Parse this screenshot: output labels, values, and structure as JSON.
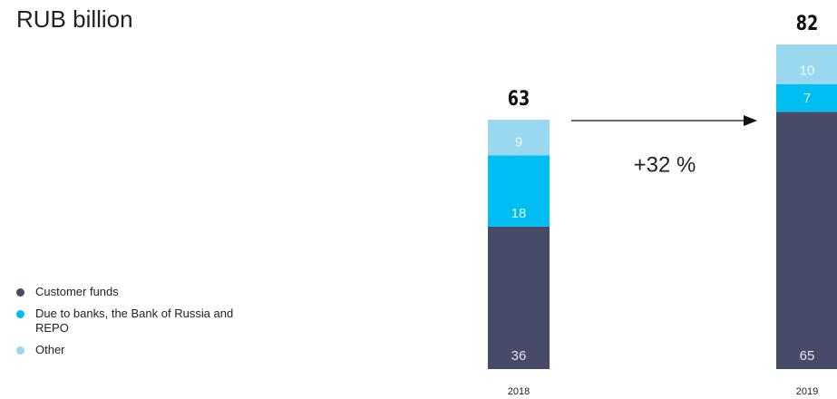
{
  "chart_data": {
    "type": "stacked_bar",
    "title": "RUB billion",
    "categories": [
      "2018",
      "2019"
    ],
    "series": [
      {
        "name": "Customer funds",
        "color": "#474a68",
        "values": [
          36,
          65
        ]
      },
      {
        "name": "Due to banks, the Bank of Russia and REPO",
        "color": "#00bdf2",
        "values": [
          18,
          7
        ]
      },
      {
        "name": "Other",
        "color": "#9ad8ef",
        "values": [
          9,
          10
        ]
      }
    ],
    "totals": [
      63,
      82
    ],
    "annotation": "+32 %"
  }
}
